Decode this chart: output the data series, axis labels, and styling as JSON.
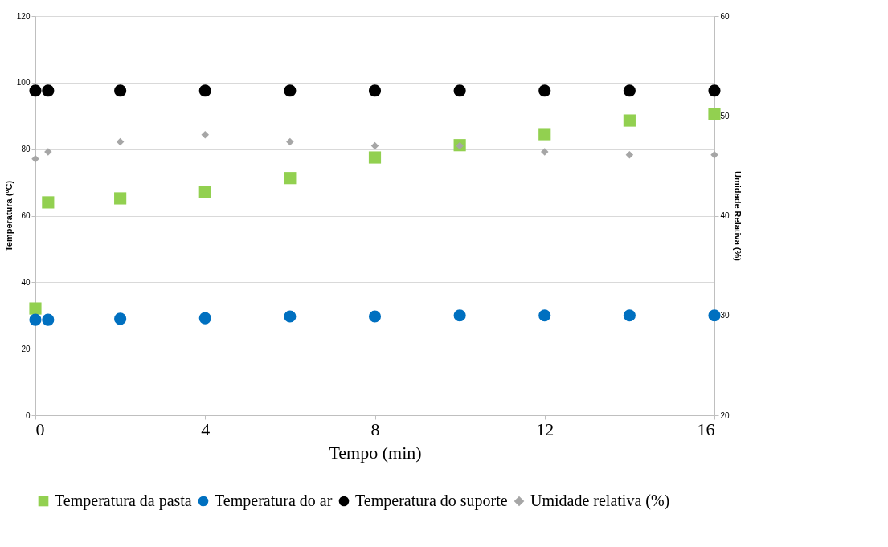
{
  "chart_data": {
    "type": "scatter",
    "xlabel": "Tempo (min)",
    "ylabel": "Temperatura (ºC)",
    "y2label": "Umidade Relativa (%)",
    "x": [
      0,
      0.3,
      2,
      4,
      6,
      8,
      10,
      12,
      14,
      16
    ],
    "series": [
      {
        "name": "Temperatura da pasta",
        "color": "#92d050",
        "marker": "square",
        "values": [
          32.1,
          64,
          65.2,
          67.1,
          71.3,
          77.5,
          81.2,
          84.5,
          88.6,
          90.6
        ]
      },
      {
        "name": "Temperatura do ar",
        "color": "#0070c0",
        "marker": "circle",
        "values": [
          28.7,
          28.7,
          29,
          29.2,
          29.7,
          29.7,
          30,
          30,
          30,
          30
        ]
      },
      {
        "name": "Temperatura do suporte",
        "color": "#000000",
        "marker": "circle",
        "values": [
          97.6,
          97.6,
          97.6,
          97.6,
          97.6,
          97.6,
          97.6,
          97.6,
          97.6,
          97.6
        ]
      },
      {
        "name": "Umidade relativa (%)",
        "color": "#a6a6a6",
        "marker": "diamond",
        "axis": "y2",
        "values": [
          45.7,
          46.4,
          47.4,
          48.1,
          47.4,
          47.0,
          47.0,
          46.4,
          46.1,
          46.1
        ]
      }
    ],
    "xlim": [
      0,
      16
    ],
    "xticks": [
      0,
      4,
      8,
      12,
      16
    ],
    "ylim": [
      0,
      120
    ],
    "yticks": [
      0,
      20,
      40,
      60,
      80,
      100,
      120
    ],
    "y2lim": [
      20,
      60
    ],
    "y2ticks": [
      20,
      30,
      40,
      50,
      60
    ],
    "grid": "y",
    "legend": "bottom"
  }
}
